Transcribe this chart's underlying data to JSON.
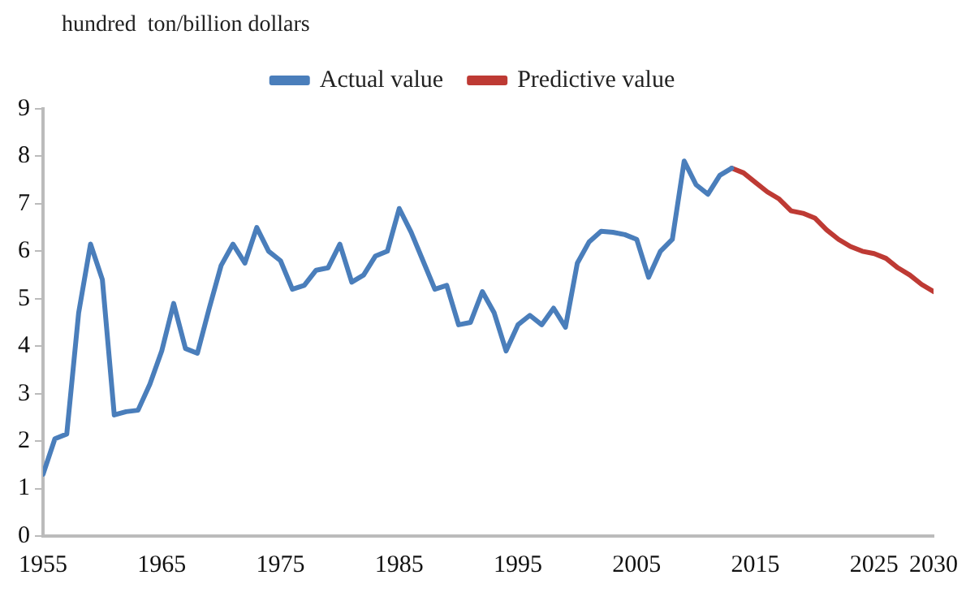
{
  "chart_data": {
    "type": "line",
    "ylabel": "hundred  ton/billion dollars",
    "legend": "top",
    "grid": false,
    "marker": "none",
    "line_style": "solid",
    "xlim": [
      1955,
      2030
    ],
    "xticks": [
      1955,
      1965,
      1975,
      1985,
      1995,
      2005,
      2015,
      2025,
      2030
    ],
    "ylim": [
      0,
      9
    ],
    "yticks": [
      0,
      1,
      2,
      3,
      4,
      5,
      6,
      7,
      8,
      9
    ],
    "series": [
      {
        "name": "Actual value",
        "color": "#4a7ebb",
        "x": [
          1955,
          1956,
          1957,
          1958,
          1959,
          1960,
          1961,
          1962,
          1963,
          1964,
          1965,
          1966,
          1967,
          1968,
          1969,
          1970,
          1971,
          1972,
          1973,
          1974,
          1975,
          1976,
          1977,
          1978,
          1979,
          1980,
          1981,
          1982,
          1983,
          1984,
          1985,
          1986,
          1987,
          1988,
          1989,
          1990,
          1991,
          1992,
          1993,
          1994,
          1995,
          1996,
          1997,
          1998,
          1999,
          2000,
          2001,
          2002,
          2003,
          2004,
          2005,
          2006,
          2007,
          2008,
          2009,
          2010,
          2011,
          2012,
          2013
        ],
        "values": [
          1.3,
          2.05,
          2.15,
          4.7,
          6.15,
          5.4,
          2.55,
          2.62,
          2.65,
          3.2,
          3.9,
          4.9,
          3.95,
          3.85,
          4.8,
          5.7,
          6.15,
          5.75,
          6.5,
          6.0,
          5.8,
          5.2,
          5.28,
          5.6,
          5.65,
          6.15,
          5.35,
          5.5,
          5.9,
          6.0,
          6.9,
          6.4,
          5.8,
          5.2,
          5.28,
          4.45,
          4.5,
          5.15,
          4.7,
          3.9,
          4.45,
          4.65,
          4.45,
          4.8,
          4.4,
          5.75,
          6.2,
          6.42,
          6.4,
          6.35,
          6.25,
          5.45,
          6.0,
          6.25,
          7.9,
          7.4,
          7.2,
          7.6,
          7.75
        ]
      },
      {
        "name": "Predictive value",
        "color": "#be3a34",
        "x": [
          2013,
          2014,
          2015,
          2016,
          2017,
          2018,
          2019,
          2020,
          2021,
          2022,
          2023,
          2024,
          2025,
          2026,
          2027,
          2028,
          2029,
          2030
        ],
        "values": [
          7.75,
          7.65,
          7.45,
          7.25,
          7.1,
          6.85,
          6.8,
          6.7,
          6.45,
          6.25,
          6.1,
          6.0,
          5.95,
          5.85,
          5.65,
          5.5,
          5.3,
          5.15
        ]
      }
    ]
  }
}
